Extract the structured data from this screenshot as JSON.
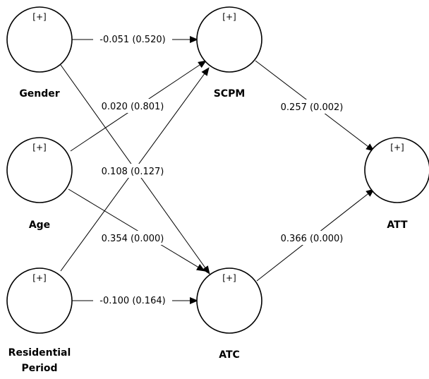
{
  "nodes": {
    "gender": {
      "label": "Gender",
      "marker": "[+]"
    },
    "age": {
      "label": "Age",
      "marker": "[+]"
    },
    "residential": {
      "label_line1": "Residential",
      "label_line2": "Period",
      "marker": "[+]"
    },
    "scpm": {
      "label": "SCPM",
      "marker": "[+]"
    },
    "atc": {
      "label": "ATC",
      "marker": "[+]"
    },
    "att": {
      "label": "ATT",
      "marker": "[+]"
    }
  },
  "paths": {
    "gender_scpm": "-0.051 (0.520)",
    "age_scpm": "0.020 (0.801)",
    "gender_atc": "0.108 (0.127)",
    "age_atc": "0.354 (0.000)",
    "residential_atc": "-0.100 (0.164)",
    "scpm_att": "0.257 (0.002)",
    "atc_att": "0.366 (0.000)"
  }
}
